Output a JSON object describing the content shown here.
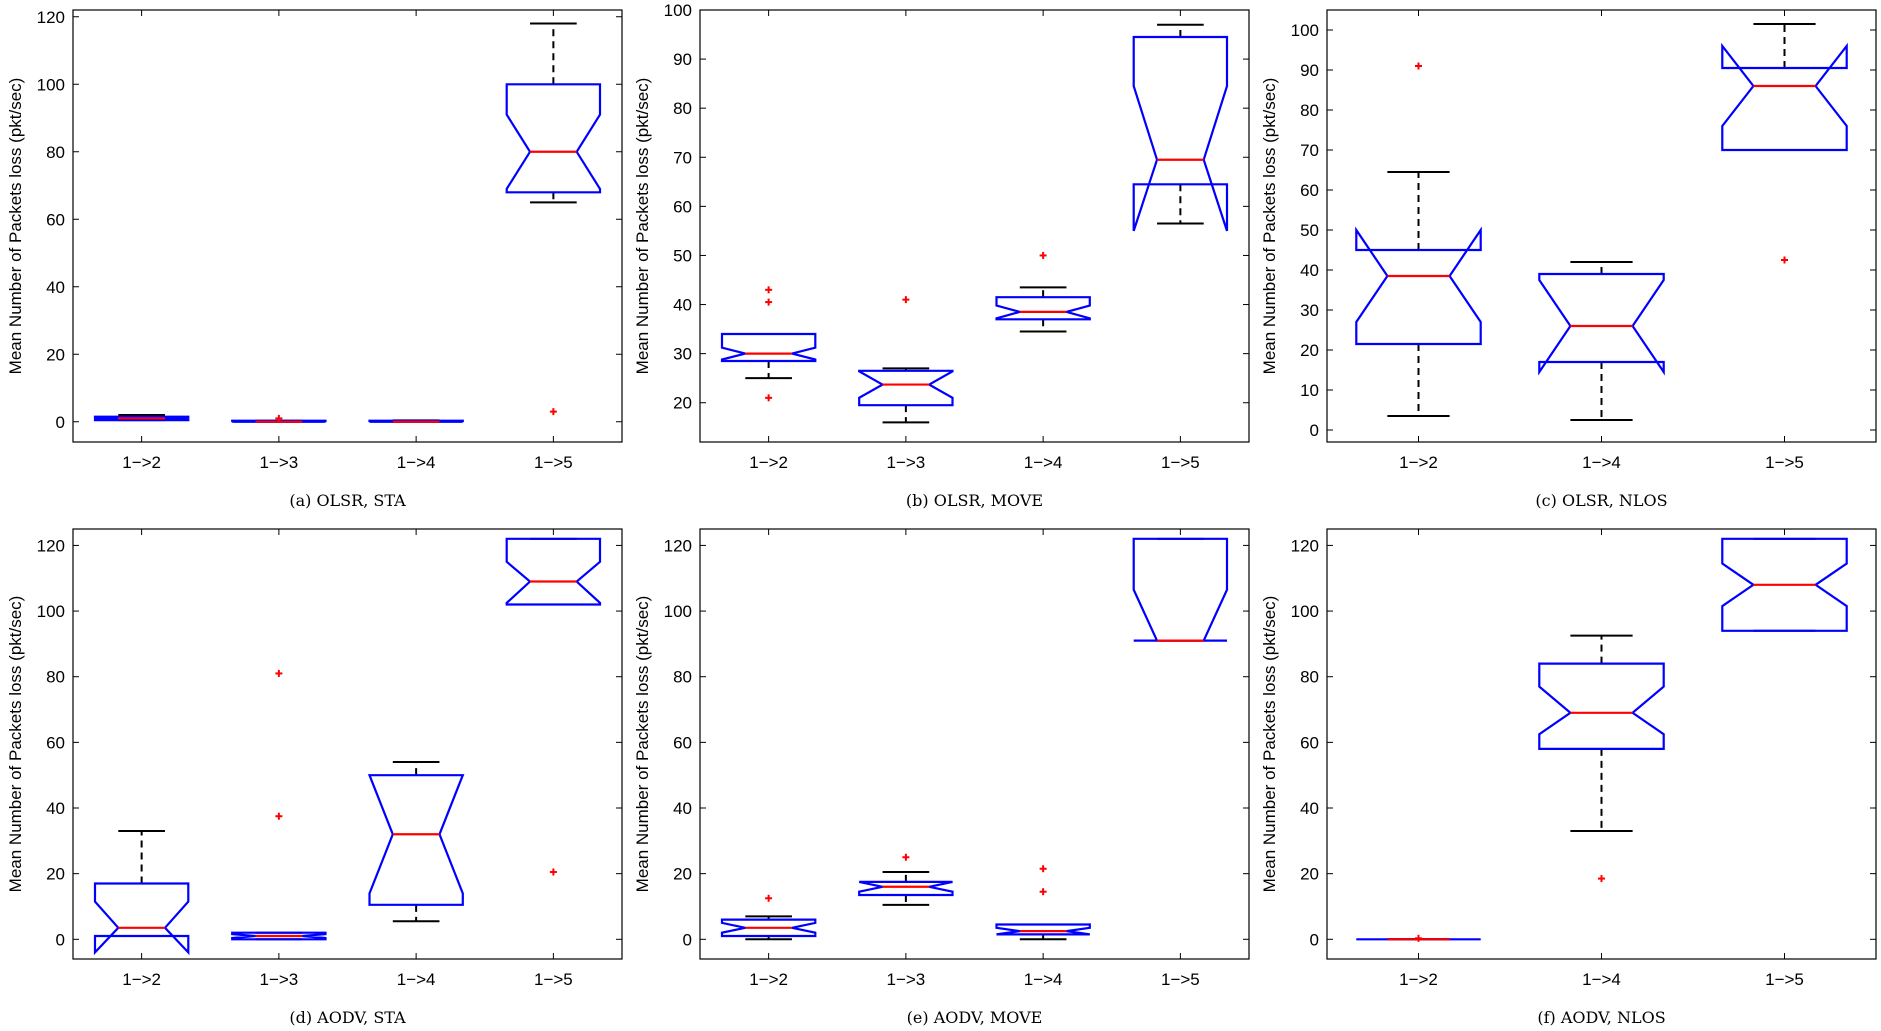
{
  "figure": {
    "colors": {
      "box": "#0000ff",
      "median": "#ff0000",
      "outlier": "#ff0000",
      "whisker": "#000000",
      "axis": "#000000"
    },
    "ylabel": "Mean Number of Packets loss (pkt/sec)"
  },
  "chart_data": [
    {
      "type": "boxplot",
      "caption": "(a) OLSR, STA",
      "ylabel": "Mean Number of Packets loss (pkt/sec)",
      "ylim": [
        -6,
        122
      ],
      "yticks": [
        0,
        20,
        40,
        60,
        80,
        100,
        120
      ],
      "categories": [
        "1−>2",
        "1−>3",
        "1−>4",
        "1−>5"
      ],
      "boxes": [
        {
          "label": "1−>2",
          "whisker_low": 0.5,
          "q1": 0.5,
          "median": 1.0,
          "q3": 1.5,
          "whisker_high": 2.0,
          "notch_low": 0.7,
          "notch_high": 1.3,
          "outliers": []
        },
        {
          "label": "1−>3",
          "whisker_low": 0,
          "q1": 0,
          "median": 0,
          "q3": 0.3,
          "whisker_high": 0.3,
          "notch_low": 0,
          "notch_high": 0.2,
          "outliers": [
            1
          ]
        },
        {
          "label": "1−>4",
          "whisker_low": 0,
          "q1": 0,
          "median": 0,
          "q3": 0.3,
          "whisker_high": 0.4,
          "notch_low": 0,
          "notch_high": 0.2,
          "outliers": []
        },
        {
          "label": "1−>5",
          "whisker_low": 65,
          "q1": 68,
          "median": 80,
          "q3": 100,
          "whisker_high": 118,
          "notch_low": 69,
          "notch_high": 91,
          "outliers": [
            3
          ]
        }
      ]
    },
    {
      "type": "boxplot",
      "caption": "(b) OLSR, MOVE",
      "ylabel": "Mean Number of Packets loss (pkt/sec)",
      "ylim": [
        12,
        100
      ],
      "yticks": [
        20,
        30,
        40,
        50,
        60,
        70,
        80,
        90,
        100
      ],
      "categories": [
        "1−>2",
        "1−>3",
        "1−>4",
        "1−>5"
      ],
      "boxes": [
        {
          "label": "1−>2",
          "whisker_low": 25,
          "q1": 28.5,
          "median": 30,
          "q3": 34,
          "whisker_high": 34,
          "notch_low": 28.8,
          "notch_high": 31.2,
          "outliers": [
            21,
            40.5,
            43
          ]
        },
        {
          "label": "1−>3",
          "whisker_low": 16,
          "q1": 19.5,
          "median": 23.7,
          "q3": 26.5,
          "whisker_high": 27,
          "notch_low": 21,
          "notch_high": 26.4,
          "outliers": [
            41
          ]
        },
        {
          "label": "1−>4",
          "whisker_low": 34.5,
          "q1": 37,
          "median": 38.5,
          "q3": 41.5,
          "whisker_high": 43.5,
          "notch_low": 37.2,
          "notch_high": 39.8,
          "outliers": [
            50
          ]
        },
        {
          "label": "1−>5",
          "whisker_low": 56.5,
          "q1": 64.5,
          "median": 69.5,
          "q3": 94.5,
          "whisker_high": 97,
          "notch_low": 55,
          "notch_high": 84.5,
          "outliers": []
        }
      ]
    },
    {
      "type": "boxplot",
      "caption": "(c) OLSR, NLOS",
      "ylabel": "Mean Number of Packets loss (pkt/sec)",
      "ylim": [
        -3,
        105
      ],
      "yticks": [
        0,
        10,
        20,
        30,
        40,
        50,
        60,
        70,
        80,
        90,
        100
      ],
      "categories": [
        "1−>2",
        "1−>4",
        "1−>5"
      ],
      "boxes": [
        {
          "label": "1−>2",
          "whisker_low": 3.5,
          "q1": 21.5,
          "median": 38.5,
          "q3": 45,
          "whisker_high": 64.5,
          "notch_low": 27,
          "notch_high": 50,
          "outliers": [
            91
          ]
        },
        {
          "label": "1−>4",
          "whisker_low": 2.5,
          "q1": 17,
          "median": 26,
          "q3": 39,
          "whisker_high": 42,
          "notch_low": 14.5,
          "notch_high": 37.5,
          "outliers": []
        },
        {
          "label": "1−>5",
          "whisker_low": 70,
          "q1": 70,
          "median": 86,
          "q3": 90.5,
          "whisker_high": 101.5,
          "notch_low": 76,
          "notch_high": 96,
          "outliers": [
            42.5
          ]
        }
      ]
    },
    {
      "type": "boxplot",
      "caption": "(d) AODV, STA",
      "ylabel": "Mean Number of Packets loss (pkt/sec)",
      "ylim": [
        -6,
        125
      ],
      "yticks": [
        0,
        20,
        40,
        60,
        80,
        100,
        120
      ],
      "categories": [
        "1−>2",
        "1−>3",
        "1−>4",
        "1−>5"
      ],
      "boxes": [
        {
          "label": "1−>2",
          "whisker_low": 1,
          "q1": 1,
          "median": 3.5,
          "q3": 17,
          "whisker_high": 33,
          "notch_low": -4,
          "notch_high": 11.5,
          "outliers": []
        },
        {
          "label": "1−>3",
          "whisker_low": 0,
          "q1": 0,
          "median": 1,
          "q3": 2,
          "whisker_high": 2,
          "notch_low": 0.4,
          "notch_high": 1.6,
          "outliers": [
            37.5,
            81
          ]
        },
        {
          "label": "1−>4",
          "whisker_low": 5.5,
          "q1": 10.5,
          "median": 32,
          "q3": 50,
          "whisker_high": 54,
          "notch_low": 14,
          "notch_high": 50,
          "outliers": []
        },
        {
          "label": "1−>5",
          "whisker_low": 102,
          "q1": 102,
          "median": 109,
          "q3": 122,
          "whisker_high": 122,
          "notch_low": 102.5,
          "notch_high": 115,
          "outliers": [
            20.5
          ]
        }
      ]
    },
    {
      "type": "boxplot",
      "caption": "(e) AODV, MOVE",
      "ylabel": "Mean Number of Packets loss (pkt/sec)",
      "ylim": [
        -6,
        125
      ],
      "yticks": [
        0,
        20,
        40,
        60,
        80,
        100,
        120
      ],
      "categories": [
        "1−>2",
        "1−>3",
        "1−>4",
        "1−>5"
      ],
      "boxes": [
        {
          "label": "1−>2",
          "whisker_low": 0,
          "q1": 1,
          "median": 3.5,
          "q3": 6,
          "whisker_high": 7,
          "notch_low": 2,
          "notch_high": 5,
          "outliers": [
            12.5
          ]
        },
        {
          "label": "1−>3",
          "whisker_low": 10.5,
          "q1": 13.5,
          "median": 16,
          "q3": 17.5,
          "whisker_high": 20.5,
          "notch_low": 14.5,
          "notch_high": 17.5,
          "outliers": [
            25
          ]
        },
        {
          "label": "1−>4",
          "whisker_low": 0,
          "q1": 1.5,
          "median": 2.5,
          "q3": 4.5,
          "whisker_high": 4.5,
          "notch_low": 1.5,
          "notch_high": 3.5,
          "outliers": [
            14.5,
            21.5
          ]
        },
        {
          "label": "1−>5",
          "whisker_low": 91,
          "q1": 91,
          "median": 91,
          "q3": 122,
          "whisker_high": 122,
          "notch_low": 91,
          "notch_high": 106.5,
          "outliers": []
        }
      ]
    },
    {
      "type": "boxplot",
      "caption": "(f) AODV, NLOS",
      "ylabel": "Mean Number of Packets loss (pkt/sec)",
      "ylim": [
        -6,
        125
      ],
      "yticks": [
        0,
        20,
        40,
        60,
        80,
        100,
        120
      ],
      "categories": [
        "1−>2",
        "1−>4",
        "1−>5"
      ],
      "boxes": [
        {
          "label": "1−>2",
          "whisker_low": 0,
          "q1": 0,
          "median": 0,
          "q3": 0,
          "whisker_high": 0,
          "notch_low": 0,
          "notch_high": 0,
          "outliers": [
            0.3
          ]
        },
        {
          "label": "1−>4",
          "whisker_low": 33,
          "q1": 58,
          "median": 69,
          "q3": 84,
          "whisker_high": 92.5,
          "notch_low": 62.5,
          "notch_high": 77,
          "outliers": [
            18.5
          ]
        },
        {
          "label": "1−>5",
          "whisker_low": 94,
          "q1": 94,
          "median": 108,
          "q3": 122,
          "whisker_high": 122,
          "notch_low": 101.5,
          "notch_high": 114.5,
          "outliers": []
        }
      ]
    }
  ]
}
